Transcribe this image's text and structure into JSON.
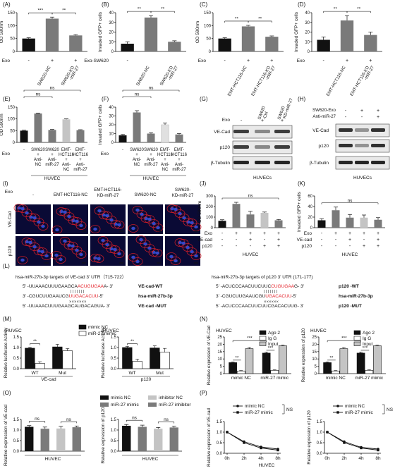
{
  "colors": {
    "black": "#111111",
    "dgray": "#7a7a7a",
    "lgray": "#c4c4c4",
    "vlgray": "#e0e0e0",
    "red": "#e41e26",
    "blue": "#1b3f8e"
  },
  "panel_letters": {
    "A": "(A)",
    "B": "(B)",
    "C": "(C)",
    "D": "(D)",
    "E": "(E)",
    "F": "(F)",
    "G": "(G)",
    "H": "(H)",
    "I": "(I)",
    "J": "(J)",
    "K": "(K)",
    "L": "(L)",
    "M": "(M)",
    "N": "(N)",
    "O": "(O)",
    "P": "(P)"
  },
  "common": {
    "exo": "Exo",
    "ns": "ns",
    "sig2": "**",
    "sig3": "***",
    "plus": "+",
    "minus": "-",
    "huvec": "HUVEC",
    "huvecs": "HUVECs",
    "wt": "WT",
    "mut": "Mut"
  },
  "chart_data": [
    {
      "id": "A",
      "type": "bar",
      "ylabel": "OD 590nm",
      "ylim": [
        0,
        150
      ],
      "yticks": [
        "0",
        "50",
        "100",
        "150"
      ],
      "categories": [
        "-",
        "SW620-NC",
        "SW620-KD-miR-27"
      ],
      "row_label": "Exo",
      "row_values": [
        "-",
        "+",
        "+"
      ],
      "values": [
        50,
        127,
        62
      ],
      "errors": [
        3,
        6,
        3
      ],
      "colors": [
        "black",
        "dgray",
        "dgray"
      ],
      "sig": [
        {
          "a": 0,
          "b": 1,
          "t": "***"
        },
        {
          "a": 1,
          "b": 2,
          "t": "**"
        }
      ]
    },
    {
      "id": "B",
      "type": "bar",
      "ylabel": "Invaded GFP+ cells",
      "ylim": [
        0,
        40
      ],
      "yticks": [
        "0",
        "10",
        "20",
        "30",
        "40"
      ],
      "categories": [
        "-",
        "SW620-NC",
        "SW620-KD-miR-27"
      ],
      "row_label": "Exo-SW620",
      "row_values": [
        "-",
        "",
        ""
      ],
      "values": [
        8,
        35,
        10
      ],
      "errors": [
        2,
        2,
        1
      ],
      "colors": [
        "black",
        "dgray",
        "dgray"
      ],
      "sig": [
        {
          "a": 0,
          "b": 1,
          "t": "**"
        },
        {
          "a": 1,
          "b": 2,
          "t": "**"
        }
      ]
    },
    {
      "id": "C",
      "type": "bar",
      "ylabel": "OD 590nm",
      "ylim": [
        0,
        150
      ],
      "yticks": [
        "0",
        "50",
        "100",
        "150"
      ],
      "categories": [
        "-",
        "EMT-HCT116-NC",
        "EMT-HCT116-KD-miR-27"
      ],
      "row_label": "Exo",
      "row_values": [
        "-",
        "+",
        "+"
      ],
      "values": [
        50,
        97,
        57
      ],
      "errors": [
        3,
        4,
        3
      ],
      "colors": [
        "black",
        "dgray",
        "dgray"
      ],
      "sig": [
        {
          "a": 0,
          "b": 1,
          "t": "**"
        },
        {
          "a": 1,
          "b": 2,
          "t": "**"
        }
      ]
    },
    {
      "id": "D",
      "type": "bar",
      "ylabel": "Invaded GFP+ cells",
      "ylim": [
        0,
        40
      ],
      "yticks": [
        "0",
        "10",
        "20",
        "30",
        "40"
      ],
      "categories": [
        "-",
        "EMT-HCT116-NC",
        "EMT-HCT116-KD-miR-27"
      ],
      "row_label": "Exo",
      "row_values": [
        "-",
        "+",
        "+"
      ],
      "values": [
        12,
        32,
        17
      ],
      "errors": [
        3,
        5,
        3
      ],
      "colors": [
        "black",
        "dgray",
        "dgray"
      ],
      "sig": [
        {
          "a": 0,
          "b": 1,
          "t": "**"
        },
        {
          "a": 1,
          "b": 2,
          "t": "**"
        }
      ]
    },
    {
      "id": "E",
      "type": "bar",
      "ylabel": "OD 590nm",
      "ylim": [
        0,
        150
      ],
      "yticks": [
        "0",
        "50",
        "100",
        "150"
      ],
      "categories": [
        "-",
        "SW620 + Anti-NC",
        "SW620 + Anti-miR-27",
        "EMT-HCT116 + Anti-NC",
        "EMT-HCT116 + Anti-miR-27"
      ],
      "row_label": "Exo",
      "row_values": [
        "-",
        "SW620\n+\nAnti-\nNC",
        "SW620\n+\nAnti-\nmiR-27",
        "EMT-\nHCT116\n+\nAnti-\nNC",
        "EMT-\nHCT116\n+\nAnti-\nmiR-27"
      ],
      "values": [
        50,
        123,
        53,
        98,
        52
      ],
      "errors": [
        2,
        2,
        2,
        2,
        2
      ],
      "colors": [
        "black",
        "dgray",
        "dgray",
        "lgray",
        "dgray"
      ],
      "sig": [
        {
          "a": 0,
          "b": 2,
          "t": "ns",
          "h": 1
        },
        {
          "a": 0,
          "b": 4,
          "t": "ns",
          "h": 2
        }
      ],
      "xlabel": "HUVEC"
    },
    {
      "id": "F",
      "type": "bar",
      "ylabel": "Invaded GFP+ cells",
      "ylim": [
        0,
        40
      ],
      "yticks": [
        "0",
        "10",
        "20",
        "30",
        "40"
      ],
      "categories": [
        "-",
        "SW620 + Anti-NC",
        "SW620 + Anti-miR-27",
        "EMT-HCT116 + Anti-NC",
        "EMT-HCT116 + Anti-miR-27"
      ],
      "row_label": "Exo",
      "row_values": [
        "-",
        "SW620\n+\nAnti-\nNC",
        "SW620\n+\nAnti-\nmiR-27",
        "EMT-\nHCT116\n+\nAnti-\nNC",
        "EMT-\nHCT116\n+\nAnti-\nmiR-27"
      ],
      "values": [
        8,
        34,
        10,
        20,
        9
      ],
      "errors": [
        1,
        2,
        1,
        2,
        1
      ],
      "colors": [
        "black",
        "dgray",
        "dgray",
        "vlgray",
        "dgray"
      ],
      "sig": [
        {
          "a": 0,
          "b": 2,
          "t": "ns",
          "h": 1
        },
        {
          "a": 0,
          "b": 4,
          "t": "ns",
          "h": 2
        }
      ],
      "xlabel": "HUVEC"
    },
    {
      "id": "J",
      "type": "bar",
      "ylabel": "OD 590nm",
      "ylim": [
        0,
        300
      ],
      "yticks": [
        "0",
        "100",
        "200",
        "300"
      ],
      "categories": [
        "1",
        "2",
        "3",
        "4",
        "5"
      ],
      "rows": [
        {
          "label": "Exo",
          "vals": [
            "-",
            "+",
            "+",
            "+",
            "+"
          ]
        },
        {
          "label": "VE-cad",
          "vals": [
            "-",
            "-",
            "+",
            "-",
            "+"
          ]
        },
        {
          "label": "p120",
          "vals": [
            "-",
            "-",
            "-",
            "+",
            "+"
          ]
        }
      ],
      "values": [
        65,
        225,
        125,
        140,
        70
      ],
      "errors": [
        10,
        15,
        30,
        8,
        8
      ],
      "colors": [
        "black",
        "dgray",
        "dgray",
        "lgray",
        "dgray"
      ],
      "sig": [
        {
          "a": 0,
          "b": 4,
          "t": "ns"
        }
      ],
      "xlabel": "HUVEC"
    },
    {
      "id": "K",
      "type": "bar",
      "ylabel": "Invaded GFP+ cells",
      "ylim": [
        0,
        60
      ],
      "yticks": [
        "0",
        "20",
        "40",
        "60"
      ],
      "categories": [
        "1",
        "2",
        "3",
        "4",
        "5"
      ],
      "rows": [
        {
          "label": "Exo",
          "vals": [
            "-",
            "+",
            "+",
            "+",
            "+"
          ]
        },
        {
          "label": "VE-cad",
          "vals": [
            "-",
            "-",
            "+",
            "-",
            "+"
          ]
        },
        {
          "label": "p120",
          "vals": [
            "-",
            "-",
            "-",
            "+",
            "+"
          ]
        }
      ],
      "values": [
        14,
        33,
        19,
        19,
        15
      ],
      "errors": [
        3,
        6,
        6,
        5,
        4
      ],
      "colors": [
        "black",
        "dgray",
        "dgray",
        "lgray",
        "dgray"
      ],
      "sig": [
        {
          "a": 0,
          "b": 4,
          "t": "ns"
        }
      ],
      "xlabel": "HUVEC"
    },
    {
      "id": "M1",
      "type": "bar",
      "title": "HUVEC",
      "ylabel": "Relative luciferase Activity",
      "ylim": [
        0,
        1.5
      ],
      "yticks": [
        "0.0",
        "0.5",
        "1.0",
        "1.5"
      ],
      "categories": [
        "WT",
        "Mut"
      ],
      "series": [
        {
          "name": "mimic NC",
          "values": [
            0.97,
            1.03
          ],
          "errors": [
            0.05,
            0.12
          ],
          "fill": "black"
        },
        {
          "name": "miR-27 mimic",
          "values": [
            0.25,
            0.85
          ],
          "errors": [
            0.08,
            0.1
          ],
          "fill": "white"
        }
      ],
      "sig": [
        {
          "g": 0,
          "t": "**"
        }
      ],
      "xlabel": "VE-cad"
    },
    {
      "id": "M2",
      "type": "bar",
      "title": "HUVEC",
      "ylabel": "Relative luciferase Activity",
      "ylim": [
        0,
        1.5
      ],
      "yticks": [
        "0.0",
        "0.5",
        "1.0",
        "1.5"
      ],
      "categories": [
        "WT",
        "Mut"
      ],
      "series": [
        {
          "name": "mimic NC",
          "values": [
            1.0,
            0.98
          ],
          "errors": [
            0.05,
            0.1
          ],
          "fill": "black"
        },
        {
          "name": "miR-27 mimic",
          "values": [
            0.35,
            0.78
          ],
          "errors": [
            0.1,
            0.18
          ],
          "fill": "white"
        }
      ],
      "sig": [
        {
          "g": 0,
          "t": "**"
        }
      ],
      "xlabel": "p120"
    },
    {
      "id": "N1",
      "type": "bar",
      "title": "HUVEC",
      "ylabel": "Relative expression of VE-Cad",
      "ylim": [
        0,
        25
      ],
      "yticks": [
        "0",
        "5",
        "10",
        "15",
        "20",
        "25"
      ],
      "categories": [
        "mimic NC",
        "miR-27 mimic"
      ],
      "series": [
        {
          "name": "Ago 2",
          "values": [
            7.5,
            14
          ],
          "errors": [
            0.5,
            0.7
          ],
          "fill": "black"
        },
        {
          "name": "Ig G",
          "values": [
            1.8,
            2.2
          ],
          "errors": [
            0.3,
            0.4
          ],
          "fill": "white"
        },
        {
          "name": "Input",
          "values": [
            17,
            19
          ],
          "errors": [
            0.8,
            0.5
          ],
          "fill": "gray"
        }
      ],
      "sig": [
        {
          "g": 0,
          "a": 0,
          "b": 1,
          "t": "**"
        },
        {
          "g": 1,
          "a": 0,
          "b": 1,
          "t": "***"
        },
        {
          "g": -1,
          "t": "***"
        }
      ]
    },
    {
      "id": "N2",
      "type": "bar",
      "title": "HUVEC",
      "ylabel": "Relative expression of p120",
      "ylim": [
        0,
        25
      ],
      "yticks": [
        "0",
        "5",
        "10",
        "15",
        "20",
        "25"
      ],
      "categories": [
        "mimic NC",
        "miR-27 mimic"
      ],
      "series": [
        {
          "name": "Ago 2",
          "values": [
            7.5,
            14
          ],
          "errors": [
            0.5,
            0.7
          ],
          "fill": "black"
        },
        {
          "name": "Ig G",
          "values": [
            1.8,
            2.2
          ],
          "errors": [
            0.3,
            0.4
          ],
          "fill": "white"
        },
        {
          "name": "Input",
          "values": [
            17,
            19
          ],
          "errors": [
            0.8,
            0.5
          ],
          "fill": "gray"
        }
      ],
      "sig": [
        {
          "g": 0,
          "a": 0,
          "b": 1,
          "t": "**"
        },
        {
          "g": 1,
          "a": 0,
          "b": 1,
          "t": "***"
        },
        {
          "g": -1,
          "t": "***"
        }
      ]
    },
    {
      "id": "O1",
      "type": "bar",
      "ylabel": "Relative expression of VE-cad",
      "ylim": [
        0,
        1.5
      ],
      "yticks": [
        "0.0",
        "0.5",
        "1.0",
        "1.5"
      ],
      "categories": [
        "mimic NC",
        "miR-27 mimic",
        "inhibitor NC",
        "miR-27 inhibitor"
      ],
      "values": [
        1.15,
        1.06,
        1.07,
        1.13
      ],
      "errors": [
        0.06,
        0.08,
        0.1,
        0.06
      ],
      "colors": [
        "black",
        "dgray",
        "lgray",
        "dgray"
      ],
      "sig": [
        {
          "a": 0,
          "b": 1,
          "t": "ns"
        },
        {
          "a": 2,
          "b": 3,
          "t": "ns"
        }
      ],
      "xlabel": "HUVEC"
    },
    {
      "id": "O2",
      "type": "bar",
      "ylabel": "Relative expression of p120",
      "ylim": [
        0,
        1.5
      ],
      "yticks": [
        "0.0",
        "0.5",
        "1.0",
        "1.5"
      ],
      "categories": [
        "mimic NC",
        "miR-27 mimic",
        "inhibitor NC",
        "miR-27 inhibitor"
      ],
      "values": [
        1.2,
        1.15,
        1.06,
        1.12
      ],
      "errors": [
        0.06,
        0.08,
        0.06,
        0.06
      ],
      "colors": [
        "black",
        "dgray",
        "lgray",
        "dgray"
      ],
      "sig": [
        {
          "a": 0,
          "b": 1,
          "t": "ns"
        },
        {
          "a": 2,
          "b": 3,
          "t": "ns"
        }
      ],
      "xlabel": "HUVEC"
    },
    {
      "id": "P1",
      "type": "line",
      "ylabel": "Relative expression of VE-cad",
      "ylim": [
        0,
        1.5
      ],
      "yticks": [
        "0.0",
        "0.5",
        "1.0",
        "1.5"
      ],
      "x": [
        "0h",
        "2h",
        "4h",
        "8h"
      ],
      "series": [
        {
          "name": "mimic NC",
          "values": [
            1.0,
            0.55,
            0.3,
            0.2
          ]
        },
        {
          "name": "miR-27 mimic",
          "values": [
            1.0,
            0.5,
            0.25,
            0.15
          ]
        }
      ],
      "sig_text": "NS",
      "xlabel": "HUVEC"
    },
    {
      "id": "P2",
      "type": "line",
      "ylabel": "Relative expression of p120",
      "ylim": [
        0,
        1.5
      ],
      "yticks": [
        "0.0",
        "0.5",
        "1.0",
        "1.5"
      ],
      "x": [
        "0h",
        "2h",
        "4h",
        "8h"
      ],
      "series": [
        {
          "name": "mimic NC",
          "values": [
            1.0,
            0.55,
            0.28,
            0.2
          ]
        },
        {
          "name": "miR-27 mimic",
          "values": [
            1.0,
            0.5,
            0.25,
            0.15
          ]
        }
      ],
      "sig_text": "NS"
    }
  ],
  "legend_O": [
    "mimic NC",
    "inhibitor NC",
    "miR-27 mimic",
    "miR-27 inhibitor"
  ],
  "blots": {
    "G": {
      "exo": "Exo",
      "lanes": [
        "-",
        "SW620-Ctrl",
        "SW620-KD-miR-27"
      ],
      "rows": [
        "VE-Cad",
        "p120",
        "β-Tubulin"
      ],
      "cell": "HUVECs"
    },
    "H": {
      "exo": "SW620-Exo",
      "anti": "Anti-miR-27",
      "exo_vals": [
        "-",
        "+",
        "+"
      ],
      "anti_vals": [
        "-",
        "-",
        "+"
      ],
      "rows": [
        "VE-Cad",
        "p120",
        "β-Tubulin"
      ],
      "cell": "HUVECs"
    }
  },
  "panelI": {
    "exo": "Exo",
    "cols": [
      "-",
      "EMT-HCT116-NC",
      "EMT-HCT116-KD-miR-27",
      "SW620-NC",
      "SW620-KD-miR-27"
    ],
    "rows": [
      "VE-Cad",
      "p120"
    ]
  },
  "panelL": {
    "title_left": "hsa-miR-27b-3p targets of VE-cad 3' UTR（715-722）",
    "title_right": "hsa-miR-27b-3p targets of p120 3' UTR (171-177)",
    "left": [
      {
        "pre": "5' -UUAAACUUUGAAGCA",
        "red": "ACUGUGAA",
        "post": "A- 3'",
        "label": "VE-cad-WT"
      },
      {
        "pre": "3' -CGUCUUGAAUCG",
        "red": "UUGACACUU",
        "post": "-5'",
        "label": "hsa-miR-27b-3p"
      },
      {
        "pre": "5' -UUAAACUUUGAAGCAUGACAGUA- 3'",
        "red": "",
        "post": "",
        "label": "VE-cad -MUT"
      }
    ],
    "right": [
      {
        "pre": "5' -ACUCCCAACUUCUUC",
        "red": "CUGUGAA",
        "post": "G- 3'",
        "label": "p120 -WT"
      },
      {
        "pre": "3' -CGUCUUGAAUCGU",
        "red": "UGACACUU",
        "post": "-5'",
        "label": "hsa-miR-27b-3p"
      },
      {
        "pre": "5' -ACUCCCAACUUCUUCGACACUUG- 3'",
        "red": "",
        "post": "",
        "label": "p120 -MUT"
      }
    ],
    "bars": "| | | | | | |",
    "crosses": "×××××××",
    "crosses_r": "××××××"
  }
}
